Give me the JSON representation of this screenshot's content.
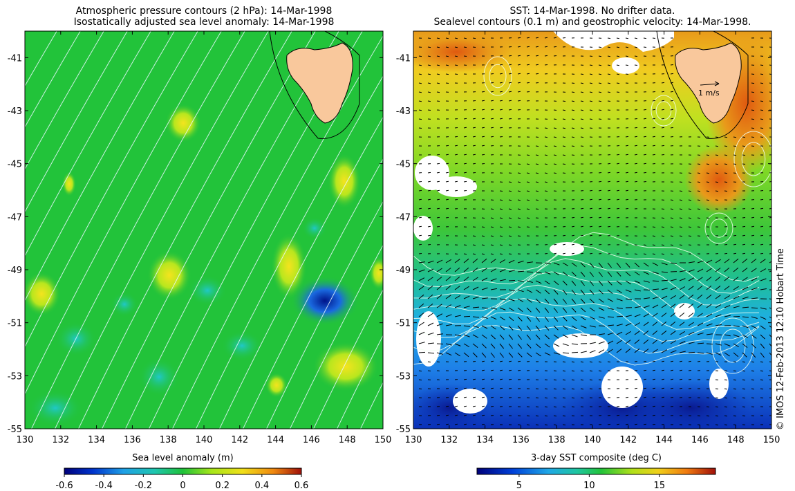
{
  "left_panel": {
    "title_line1": "Atmospheric pressure contours (2 hPa): 14-Mar-1998",
    "title_line2": "Isostatically adjusted sea level anomaly: 14-Mar-1998",
    "y_ticks": [
      "-41",
      "-43",
      "-45",
      "-47",
      "-49",
      "-51",
      "-53",
      "-55"
    ],
    "x_ticks": [
      "130",
      "132",
      "134",
      "136",
      "138",
      "140",
      "142",
      "144",
      "146",
      "148",
      "150"
    ],
    "colorbar": {
      "label": "Sea level anomaly (m)",
      "ticks": [
        "-0.6",
        "-0.4",
        "-0.2",
        "0",
        "0.2",
        "0.4",
        "0.6"
      ],
      "range": [
        -0.6,
        0.6
      ]
    },
    "field_color": "#22c33a",
    "landmass": "tasmania-icon",
    "land_color": "#f9c89c"
  },
  "right_panel": {
    "title_line1": "SST: 14-Mar-1998. No drifter data.",
    "title_line2": "Sealevel contours (0.1 m) and geostrophic velocity: 14-Mar-1998.",
    "y_ticks": [
      "-41",
      "-43",
      "-45",
      "-47",
      "-49",
      "-51",
      "-53",
      "-55"
    ],
    "x_ticks": [
      "130",
      "132",
      "134",
      "136",
      "138",
      "140",
      "142",
      "144",
      "146",
      "148",
      "150"
    ],
    "velocity_scale_label": "1 m/s",
    "colorbar": {
      "label": "3-day SST composite (deg C)",
      "ticks": [
        "5",
        "10",
        "15"
      ],
      "range": [
        2,
        19
      ]
    },
    "landmass": "tasmania-icon",
    "land_color": "#f9c89c"
  },
  "credit": "© IMOS 12-Feb-2013 12:10 Hobart Time",
  "map_extent": {
    "lon": [
      130,
      150
    ],
    "lat": [
      -55,
      -40
    ]
  }
}
